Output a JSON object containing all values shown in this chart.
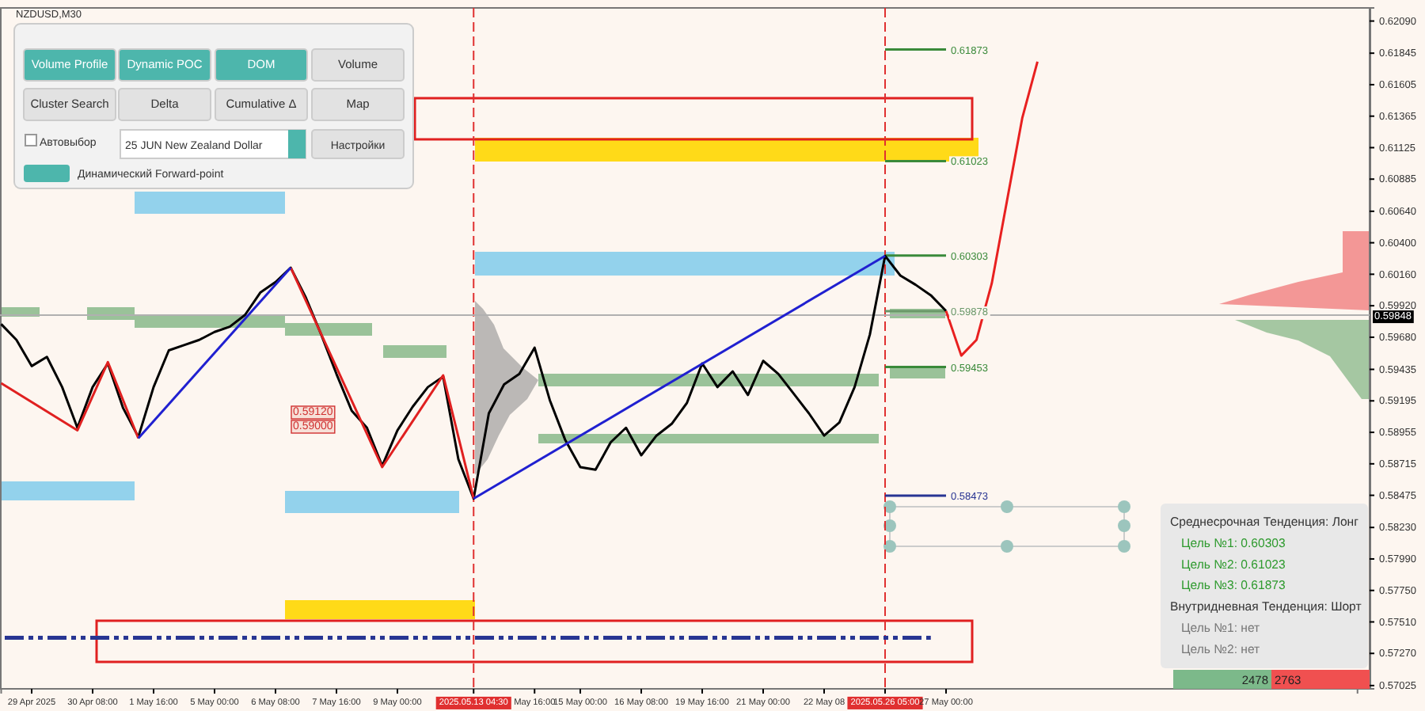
{
  "chart_data": {
    "type": "line",
    "title": "NZDUSD,M30",
    "categories": [
      null,
      null,
      "29 Apr 2025",
      null,
      null,
      null,
      "30 Apr 08:00",
      null,
      null,
      null,
      "1 May 16:00",
      null,
      null,
      null,
      "5 May 00:00",
      null,
      null,
      null,
      "6 May 08:00",
      null,
      null,
      null,
      "7 May 16:00",
      null,
      null,
      null,
      "9 May 00:00",
      null,
      null,
      null,
      null,
      "2025.05.13 04:30",
      null,
      null,
      null,
      "May 16:00",
      null,
      null,
      "15 May 00:00",
      null,
      null,
      null,
      "16 May 08:00",
      null,
      null,
      null,
      "19 May 16:00",
      null,
      null,
      null,
      "21 May 00:00",
      null,
      null,
      null,
      "22 May 08",
      null,
      null,
      null,
      "2025.05.26 05:00",
      null,
      null,
      null,
      "27 May 00:00",
      null,
      null,
      null,
      null,
      null,
      null,
      null,
      null,
      null,
      null,
      null,
      null,
      null,
      null,
      null,
      null,
      null,
      null,
      null,
      null,
      null,
      null,
      null,
      null,
      null,
      null,
      null
    ],
    "ylim": [
      0.57,
      0.6219
    ],
    "yticks": [
      {
        "value": 0.6209,
        "label": "0.62090"
      },
      {
        "value": 0.61845,
        "label": "0.61845"
      },
      {
        "value": 0.61605,
        "label": "0.61605"
      },
      {
        "value": 0.61365,
        "label": "0.61365"
      },
      {
        "value": 0.61125,
        "label": "0.61125"
      },
      {
        "value": 0.60885,
        "label": "0.60885"
      },
      {
        "value": 0.6064,
        "label": "0.60640"
      },
      {
        "value": 0.604,
        "label": "0.60400"
      },
      {
        "value": 0.6016,
        "label": "0.60160"
      },
      {
        "value": 0.5992,
        "label": "0.59920"
      },
      {
        "value": 0.5968,
        "label": "0.59680"
      },
      {
        "value": 0.59435,
        "label": "0.59435"
      },
      {
        "value": 0.59195,
        "label": "0.59195"
      },
      {
        "value": 0.58955,
        "label": "0.58955"
      },
      {
        "value": 0.58715,
        "label": "0.58715"
      },
      {
        "value": 0.58475,
        "label": "0.58475"
      },
      {
        "value": 0.5823,
        "label": "0.58230"
      },
      {
        "value": 0.5799,
        "label": "0.57990"
      },
      {
        "value": 0.5775,
        "label": "0.57750"
      },
      {
        "value": 0.5751,
        "label": "0.57510"
      },
      {
        "value": 0.5727,
        "label": "0.57270"
      },
      {
        "value": 0.57025,
        "label": "0.57025"
      }
    ],
    "series": [
      {
        "color": "#000000",
        "values": [
          0.5978,
          0.5966,
          0.5946,
          0.5953,
          0.593,
          0.5899,
          0.593,
          0.5948,
          0.5914,
          0.5892,
          0.593,
          0.5958,
          0.5962,
          0.5966,
          0.5972,
          0.5976,
          0.5985,
          0.6002,
          0.601,
          0.6021,
          0.5998,
          0.597,
          0.594,
          0.5912,
          0.5899,
          0.587,
          0.5897,
          0.5915,
          0.593,
          0.5938,
          0.5875,
          0.5845,
          0.591,
          0.5932,
          0.594,
          0.596,
          0.592,
          0.589,
          0.5869,
          0.5867,
          0.5888,
          0.5899,
          0.5878,
          0.5893,
          0.5902,
          0.5918,
          0.5948,
          0.593,
          0.5942,
          0.5924,
          0.595,
          0.594,
          0.5925,
          0.591,
          0.5893,
          0.5903,
          0.593,
          0.597,
          0.603,
          0.6015,
          0.6008,
          0.6,
          0.5988,
          null,
          null,
          null,
          null,
          null,
          null,
          null,
          null,
          null,
          null,
          null,
          null,
          null,
          null,
          null,
          null,
          null,
          null,
          null,
          null,
          null,
          null,
          null,
          null,
          null,
          null,
          null
        ]
      },
      {
        "color": "#e02020",
        "values": [
          0.5933,
          null,
          null,
          null,
          null,
          0.5897,
          null,
          0.5949,
          null,
          0.5891,
          null,
          null,
          null,
          null,
          null,
          null,
          null,
          null,
          null,
          null,
          null,
          null,
          null,
          null,
          null,
          null,
          null,
          null,
          null,
          null,
          null,
          null,
          null,
          null,
          null,
          null,
          null,
          null,
          null,
          null,
          null,
          null,
          null,
          null,
          null,
          null,
          null,
          null,
          null,
          null,
          null,
          null,
          null,
          null,
          null,
          null,
          null,
          null,
          null,
          null,
          null,
          null,
          null,
          null,
          null,
          null,
          null,
          null,
          null,
          null,
          null,
          null,
          null,
          null,
          null,
          null,
          null,
          null,
          null,
          null,
          null,
          null,
          null,
          null,
          null,
          null,
          null,
          null,
          null,
          null
        ]
      },
      {
        "color": "#e02020",
        "values": [
          null,
          null,
          null,
          null,
          null,
          null,
          null,
          null,
          null,
          null,
          null,
          null,
          null,
          null,
          null,
          null,
          null,
          null,
          null,
          0.6021,
          null,
          null,
          null,
          null,
          null,
          0.5869,
          null,
          null,
          null,
          0.5939,
          null,
          0.5845,
          null,
          null,
          null,
          null,
          null,
          null,
          null,
          null,
          null,
          null,
          null,
          null,
          null,
          null,
          null,
          null,
          null,
          null,
          null,
          null,
          null,
          null,
          null,
          null,
          null,
          null,
          null,
          null,
          null,
          null,
          null,
          null,
          null,
          null,
          null,
          null,
          null,
          null,
          null,
          null,
          null,
          null,
          null,
          null,
          null,
          null,
          null,
          null,
          null,
          null,
          null,
          null,
          null,
          null,
          null,
          null,
          null,
          null
        ]
      },
      {
        "color": "#2020d0",
        "values": [
          null,
          null,
          null,
          null,
          null,
          null,
          null,
          null,
          null,
          0.5891,
          null,
          null,
          null,
          null,
          null,
          null,
          null,
          null,
          null,
          0.6021,
          null,
          null,
          null,
          null,
          null,
          null,
          null,
          null,
          null,
          null,
          null,
          null,
          null,
          null,
          null,
          null,
          null,
          null,
          null,
          null,
          null,
          null,
          null,
          null,
          null,
          null,
          null,
          null,
          null,
          null,
          null,
          null,
          null,
          null,
          null,
          null,
          null,
          null,
          null,
          null,
          null,
          null,
          null,
          null,
          null,
          null,
          null,
          null,
          null,
          null,
          null,
          null,
          null,
          null,
          null,
          null,
          null,
          null,
          null,
          null,
          null,
          null,
          null,
          null,
          null,
          null,
          null,
          null,
          null,
          null
        ]
      },
      {
        "color": "#2020d0",
        "values": [
          null,
          null,
          null,
          null,
          null,
          null,
          null,
          null,
          null,
          null,
          null,
          null,
          null,
          null,
          null,
          null,
          null,
          null,
          null,
          null,
          null,
          null,
          null,
          null,
          null,
          null,
          null,
          null,
          null,
          null,
          null,
          0.5845,
          null,
          null,
          null,
          null,
          null,
          null,
          null,
          null,
          null,
          null,
          null,
          null,
          null,
          null,
          null,
          null,
          null,
          null,
          null,
          null,
          null,
          null,
          null,
          null,
          null,
          null,
          0.603,
          null,
          null,
          null,
          null,
          null,
          null,
          null,
          null,
          null,
          null,
          null,
          null,
          null,
          null,
          null,
          null,
          null,
          null,
          null,
          null,
          null,
          null,
          null,
          null,
          null,
          null,
          null,
          null,
          null,
          null,
          null
        ]
      },
      {
        "color": "#e82020",
        "values": [
          null,
          null,
          null,
          null,
          null,
          null,
          null,
          null,
          null,
          null,
          null,
          null,
          null,
          null,
          null,
          null,
          null,
          null,
          null,
          null,
          null,
          null,
          null,
          null,
          null,
          null,
          null,
          null,
          null,
          null,
          null,
          null,
          null,
          null,
          null,
          null,
          null,
          null,
          null,
          null,
          null,
          null,
          null,
          null,
          null,
          null,
          null,
          null,
          null,
          null,
          null,
          null,
          null,
          null,
          null,
          null,
          null,
          null,
          null,
          null,
          null,
          null,
          0.5988,
          0.5954,
          0.5966,
          0.6009,
          0.6072,
          0.6135,
          0.6178,
          null,
          null,
          null,
          null,
          null,
          null,
          null,
          null,
          null,
          null,
          null,
          null,
          null,
          null,
          null,
          null,
          null,
          null,
          null,
          null,
          null
        ]
      }
    ],
    "ref_lines": [
      {
        "axis": "x",
        "value": "2025.05.13 04:30",
        "color": "#e03030",
        "line_style": "dashed"
      },
      {
        "axis": "x",
        "value": "2025.05.26 05:00",
        "color": "#e03030",
        "line_style": "dashed"
      },
      {
        "axis": "y",
        "value": 0.61873,
        "label": "0.61873",
        "color": "#3a8a3a",
        "line_style": "solid"
      },
      {
        "axis": "y",
        "value": 0.61023,
        "label": "0.61023",
        "color": "#3a8a3a",
        "line_style": "solid"
      },
      {
        "axis": "y",
        "value": 0.60303,
        "label": "0.60303",
        "color": "#3a8a3a",
        "line_style": "solid"
      },
      {
        "axis": "y",
        "value": 0.59878,
        "label": "0.59878",
        "color": "#6a986a",
        "line_style": "solid"
      },
      {
        "axis": "y",
        "value": 0.59453,
        "label": "0.59453",
        "color": "#3a8a3a",
        "line_style": "solid"
      },
      {
        "axis": "y",
        "value": 0.58473,
        "label": "0.58473",
        "color": "#283593",
        "line_style": "solid"
      },
      {
        "axis": "y",
        "value": 0.59848,
        "label": "0.59848",
        "color": "#b0b0b0"
      },
      {
        "axis": "y",
        "value": 0.5739,
        "color": "#283593",
        "line_style": "dashed"
      }
    ],
    "annotations": [
      "0.59120",
      "0.59000",
      "Volume Profile",
      "Dynamic POC",
      "DOM",
      "Volume",
      "Cluster Search",
      "Delta",
      "Cumulative Δ",
      "Map",
      "Автовыбор",
      "25 JUN New Zealand Dollar",
      "Настройки",
      "Динамический Forward-point",
      "Среднесрочная Тенденция: Лонг",
      "Цель №1: 0.60303",
      "Цель №2: 0.61023",
      "Цель №3: 0.61873",
      "Внутридневная Тенденция: Шорт",
      "Цель №1: нет",
      "Цель №2: нет",
      "2478",
      "2763"
    ]
  }
}
